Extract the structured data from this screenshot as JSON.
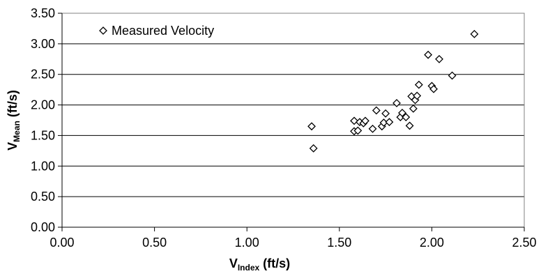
{
  "chart_data": {
    "type": "scatter",
    "xlabel": {
      "main": "V",
      "sub": "Index",
      "unit": " (ft/s)"
    },
    "ylabel": {
      "main": "V",
      "sub": "Mean",
      "unit": " (ft/s)"
    },
    "xlim": [
      0,
      2.5
    ],
    "ylim": [
      0,
      3.5
    ],
    "x_ticks": [
      "0.00",
      "0.50",
      "1.00",
      "1.50",
      "2.00",
      "2.50"
    ],
    "y_ticks": [
      "0.00",
      "0.50",
      "1.00",
      "1.50",
      "2.00",
      "2.50",
      "3.00",
      "3.50"
    ],
    "grid": {
      "horizontal": true,
      "vertical": false
    },
    "legend": {
      "position": "top-left",
      "label": "Measured Velocity"
    },
    "series": [
      {
        "name": "Measured Velocity",
        "marker": "diamond",
        "points": [
          [
            1.35,
            1.65
          ],
          [
            1.36,
            1.29
          ],
          [
            1.58,
            1.74
          ],
          [
            1.58,
            1.57
          ],
          [
            1.6,
            1.58
          ],
          [
            1.61,
            1.72
          ],
          [
            1.63,
            1.7
          ],
          [
            1.64,
            1.74
          ],
          [
            1.68,
            1.61
          ],
          [
            1.7,
            1.91
          ],
          [
            1.73,
            1.65
          ],
          [
            1.74,
            1.71
          ],
          [
            1.75,
            1.86
          ],
          [
            1.77,
            1.72
          ],
          [
            1.81,
            2.03
          ],
          [
            1.83,
            1.8
          ],
          [
            1.84,
            1.87
          ],
          [
            1.86,
            1.8
          ],
          [
            1.88,
            1.66
          ],
          [
            1.89,
            2.14
          ],
          [
            1.9,
            1.94
          ],
          [
            1.91,
            2.08
          ],
          [
            1.92,
            2.15
          ],
          [
            1.93,
            2.33
          ],
          [
            1.98,
            2.82
          ],
          [
            2.0,
            2.31
          ],
          [
            2.01,
            2.26
          ],
          [
            2.04,
            2.75
          ],
          [
            2.11,
            2.48
          ],
          [
            2.23,
            3.16
          ]
        ]
      }
    ]
  }
}
